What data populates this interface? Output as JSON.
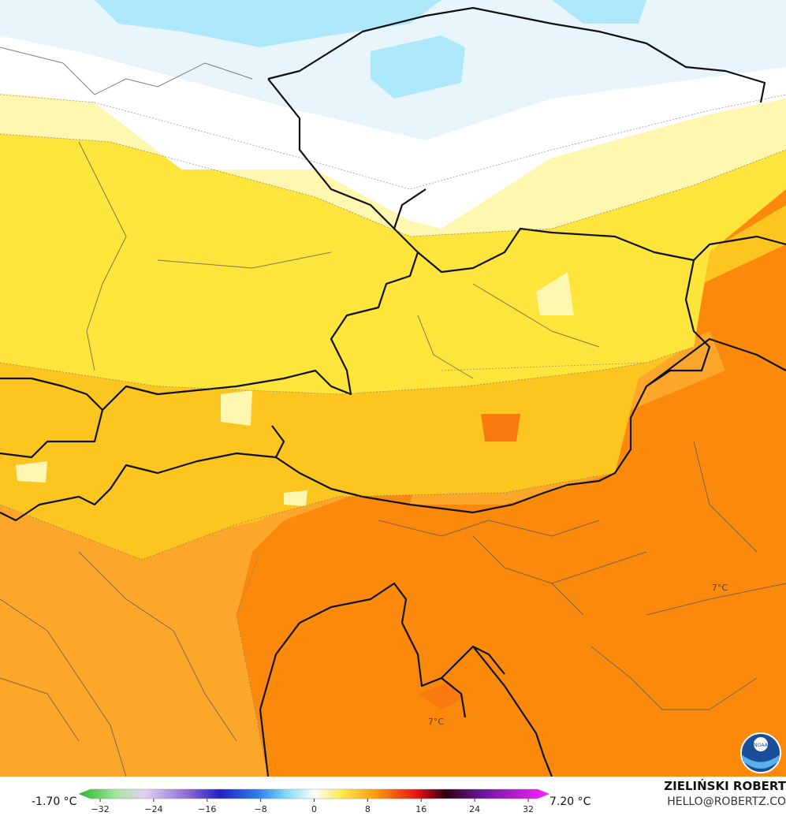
{
  "map": {
    "labels": [
      "7°C",
      "7°C"
    ]
  },
  "logo": {
    "text": "NOAA"
  },
  "footer": {
    "min_label": "-1.70 °C",
    "max_label": "7.20 °C",
    "author": "ZIELIŃSKI ROBERT",
    "contact": "HELLO@ROBERTZ.CO",
    "colorbar_ticks": [
      "−32",
      "−24",
      "−16",
      "−8",
      "0",
      "8",
      "16",
      "24",
      "32"
    ]
  }
}
